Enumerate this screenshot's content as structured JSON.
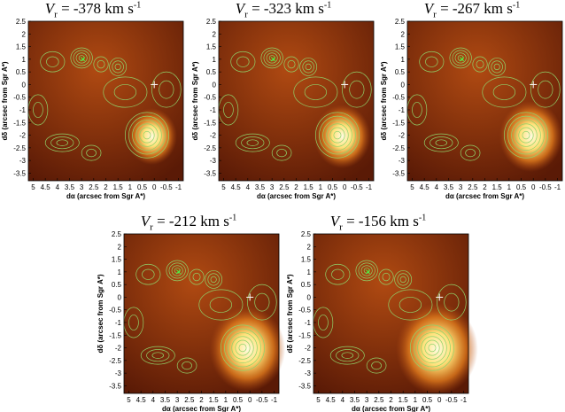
{
  "panels": [
    {
      "title_prefix": "V",
      "title_sub": "r",
      "title_value": " = -378 km s",
      "title_exp": "-1"
    },
    {
      "title_prefix": "V",
      "title_sub": "r",
      "title_value": " = -323 km s",
      "title_exp": "-1"
    },
    {
      "title_prefix": "V",
      "title_sub": "r",
      "title_value": " = -267 km s",
      "title_exp": "-1"
    },
    {
      "title_prefix": "V",
      "title_sub": "r",
      "title_value": " = -212 km s",
      "title_exp": "-1"
    },
    {
      "title_prefix": "V",
      "title_sub": "r",
      "title_value": " = -156 km s",
      "title_exp": "-1"
    }
  ],
  "axes": {
    "xlabel": "dα (arcsec from Sgr A*)",
    "ylabel": "dδ (arcsec from Sgr A*)",
    "x_ticks": [
      "5",
      "4.5",
      "4",
      "3.5",
      "3",
      "2.5",
      "2",
      "1.5",
      "1",
      "0.5",
      "0",
      "-0.5",
      "-1"
    ],
    "y_ticks": [
      "2.5",
      "2",
      "1.5",
      "1",
      "0.5",
      "0",
      "-0.5",
      "-1",
      "-1.5",
      "-2",
      "-2.5",
      "-3",
      "-3.5"
    ],
    "xlim": [
      5.2,
      -1.2
    ],
    "ylim": [
      -3.8,
      2.5
    ]
  },
  "colors": {
    "background_dark": "#5a1a06",
    "background_mid": "#b04a12",
    "blob_core": "#fffbe0",
    "contour": "#8fd36a",
    "marker": "#ffffff"
  }
}
